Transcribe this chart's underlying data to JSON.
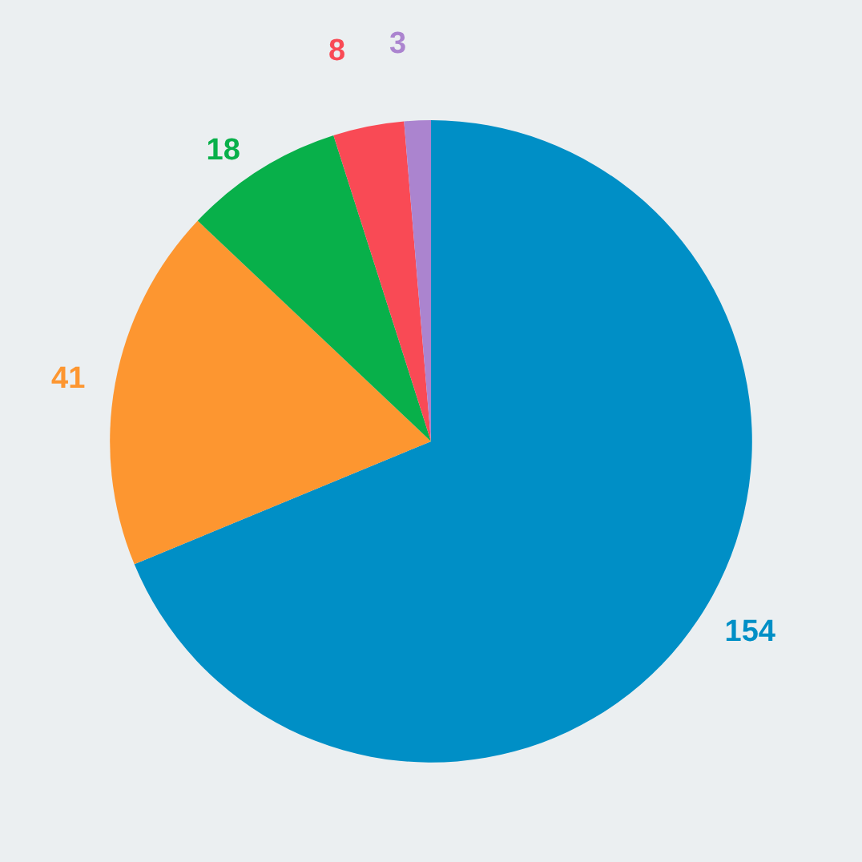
{
  "chart_data": {
    "type": "pie",
    "categories": [
      null,
      null,
      null,
      null,
      null
    ],
    "values": [
      154,
      41,
      18,
      8,
      3
    ],
    "colors": [
      "#008fc6",
      "#fd9630",
      "#08b04a",
      "#f94a55",
      "#ab84cf"
    ],
    "data_labels": true
  }
}
